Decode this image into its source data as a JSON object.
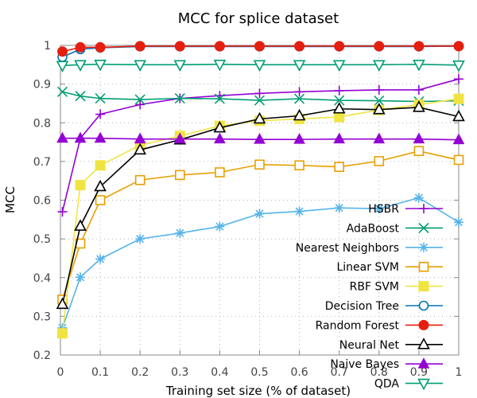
{
  "chart_data": {
    "type": "line",
    "title": "MCC for splice dataset",
    "xlabel": "Training set size (% of dataset)",
    "ylabel": "MCC",
    "xlim": [
      0,
      1
    ],
    "ylim": [
      0.2,
      1
    ],
    "xticks": [
      0,
      0.1,
      0.2,
      0.3,
      0.4,
      0.5,
      0.6,
      0.7,
      0.8,
      0.9,
      1
    ],
    "xtick_labels": [
      "0",
      "0.1",
      "0.2",
      "0.3",
      "0.4",
      "0.5",
      "0.6",
      "0.7",
      "0.8",
      "0.9",
      "1"
    ],
    "yticks": [
      0.2,
      0.3,
      0.4,
      0.5,
      0.6,
      0.7,
      0.8,
      0.9,
      1
    ],
    "ytick_labels": [
      "0.2",
      "0.3",
      "0.4",
      "0.5",
      "0.6",
      "0.7",
      "0.8",
      "0.9",
      "1"
    ],
    "grid": true,
    "legend_position": "bottom-right",
    "x": [
      0.005,
      0.05,
      0.1,
      0.2,
      0.3,
      0.4,
      0.5,
      0.6,
      0.7,
      0.8,
      0.9,
      1.0
    ],
    "series": [
      {
        "name": "HSBR",
        "color": "#9400d3",
        "marker": "plus",
        "values": [
          0.57,
          0.76,
          0.822,
          0.847,
          0.863,
          0.87,
          0.876,
          0.88,
          0.883,
          0.885,
          0.885,
          0.913
        ]
      },
      {
        "name": "AdaBoost",
        "color": "#009e73",
        "marker": "x",
        "values": [
          0.88,
          0.869,
          0.863,
          0.86,
          0.863,
          0.862,
          0.858,
          0.862,
          0.858,
          0.857,
          0.855,
          0.857
        ]
      },
      {
        "name": "Nearest Neighbors",
        "color": "#56b4e9",
        "marker": "star",
        "values": [
          0.27,
          0.401,
          0.448,
          0.5,
          0.515,
          0.532,
          0.565,
          0.571,
          0.58,
          0.578,
          0.606,
          0.543
        ]
      },
      {
        "name": "Linear SVM",
        "color": "#e69f00",
        "marker": "square-open",
        "values": [
          0.343,
          0.488,
          0.6,
          0.652,
          0.665,
          0.672,
          0.692,
          0.69,
          0.686,
          0.701,
          0.727,
          0.704
        ]
      },
      {
        "name": "RBF SVM",
        "color": "#f0e442",
        "marker": "square-filled",
        "values": [
          0.256,
          0.639,
          0.69,
          0.742,
          0.766,
          0.792,
          0.805,
          0.81,
          0.815,
          0.833,
          0.847,
          0.862
        ]
      },
      {
        "name": "Decision Tree",
        "color": "#0072b2",
        "marker": "circle-open",
        "values": [
          0.97,
          0.99,
          0.994,
          0.997,
          0.997,
          0.997,
          0.997,
          0.997,
          0.997,
          0.997,
          0.997,
          0.998
        ]
      },
      {
        "name": "Random Forest",
        "color": "#e51e10",
        "marker": "circle-filled",
        "values": [
          0.984,
          0.995,
          0.995,
          0.998,
          0.998,
          0.998,
          0.998,
          0.998,
          0.998,
          0.998,
          0.998,
          0.998
        ]
      },
      {
        "name": "Neural Net",
        "color": "#000000",
        "marker": "triangle-open",
        "values": [
          0.331,
          0.533,
          0.635,
          0.73,
          0.756,
          0.787,
          0.81,
          0.818,
          0.836,
          0.834,
          0.84,
          0.816
        ]
      },
      {
        "name": "Naive Bayes",
        "color": "#9400d3",
        "marker": "triangle-filled",
        "values": [
          0.76,
          0.76,
          0.76,
          0.758,
          0.758,
          0.758,
          0.757,
          0.757,
          0.758,
          0.758,
          0.758,
          0.756
        ]
      },
      {
        "name": "QDA",
        "color": "#009e73",
        "marker": "triangle-down-open",
        "values": [
          0.948,
          0.95,
          0.951,
          0.95,
          0.95,
          0.951,
          0.95,
          0.95,
          0.95,
          0.95,
          0.951,
          0.949
        ]
      }
    ]
  }
}
